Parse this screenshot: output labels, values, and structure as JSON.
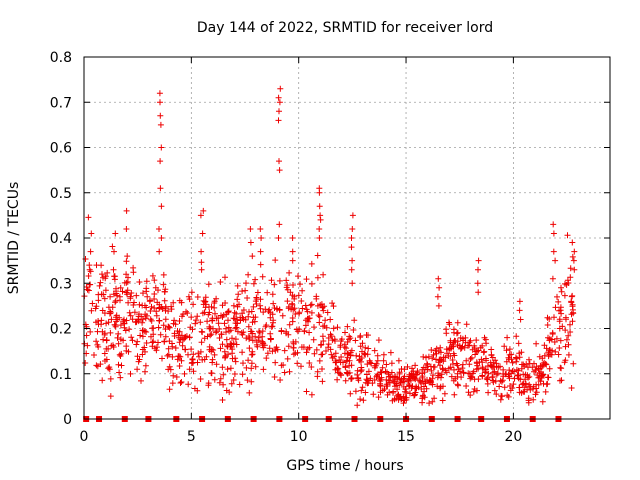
{
  "chart_data": {
    "type": "scatter",
    "title": "Day 144 of 2022, SRMTID for receiver lord",
    "xlabel": "GPS time / hours",
    "ylabel": "SRMTID / TECUs",
    "xlim": [
      0,
      24.5
    ],
    "ylim": [
      0,
      0.8
    ],
    "xticks": [
      0,
      5,
      10,
      15,
      20
    ],
    "xtick_labels": [
      "0",
      "5",
      "10",
      "15",
      "20"
    ],
    "yticks": [
      0,
      0.1,
      0.2,
      0.3,
      0.4,
      0.5,
      0.6,
      0.7,
      0.8
    ],
    "ytick_labels": [
      "0",
      "0.1",
      "0.2",
      "0.3",
      "0.4",
      "0.5",
      "0.6",
      "0.7",
      "0.8"
    ],
    "grid": true,
    "marker": "plus",
    "color": "#ee0000",
    "profile": [
      [
        0.0,
        0.16
      ],
      [
        0.2,
        0.3
      ],
      [
        0.4,
        0.25
      ],
      [
        0.7,
        0.2
      ],
      [
        1.0,
        0.24
      ],
      [
        1.3,
        0.23
      ],
      [
        1.6,
        0.25
      ],
      [
        2.0,
        0.24
      ],
      [
        2.4,
        0.22
      ],
      [
        2.8,
        0.21
      ],
      [
        3.2,
        0.2
      ],
      [
        3.6,
        0.22
      ],
      [
        4.0,
        0.16
      ],
      [
        4.4,
        0.17
      ],
      [
        4.8,
        0.19
      ],
      [
        5.2,
        0.2
      ],
      [
        5.6,
        0.21
      ],
      [
        6.0,
        0.19
      ],
      [
        6.5,
        0.17
      ],
      [
        7.0,
        0.18
      ],
      [
        7.5,
        0.2
      ],
      [
        8.0,
        0.2
      ],
      [
        8.5,
        0.2
      ],
      [
        9.0,
        0.2
      ],
      [
        9.5,
        0.21
      ],
      [
        10.0,
        0.2
      ],
      [
        10.5,
        0.21
      ],
      [
        11.0,
        0.21
      ],
      [
        11.5,
        0.17
      ],
      [
        12.0,
        0.14
      ],
      [
        12.5,
        0.13
      ],
      [
        13.0,
        0.12
      ],
      [
        13.5,
        0.11
      ],
      [
        14.0,
        0.1
      ],
      [
        14.5,
        0.08
      ],
      [
        15.0,
        0.07
      ],
      [
        15.5,
        0.08
      ],
      [
        16.0,
        0.09
      ],
      [
        16.5,
        0.11
      ],
      [
        17.0,
        0.13
      ],
      [
        17.5,
        0.14
      ],
      [
        18.0,
        0.13
      ],
      [
        18.5,
        0.12
      ],
      [
        19.0,
        0.1
      ],
      [
        19.5,
        0.1
      ],
      [
        20.0,
        0.11
      ],
      [
        20.5,
        0.09
      ],
      [
        21.0,
        0.09
      ],
      [
        21.5,
        0.13
      ],
      [
        22.0,
        0.19
      ],
      [
        22.4,
        0.22
      ],
      [
        22.8,
        0.27
      ]
    ],
    "spikes": [
      {
        "x": 3.55,
        "values": [
          0.72,
          0.7,
          0.67,
          0.65,
          0.6,
          0.57,
          0.51,
          0.47,
          0.42,
          0.4,
          0.37
        ]
      },
      {
        "x": 9.1,
        "values": [
          0.73,
          0.71,
          0.7,
          0.68,
          0.66,
          0.57,
          0.55,
          0.43,
          0.4
        ]
      },
      {
        "x": 11.0,
        "values": [
          0.51,
          0.5,
          0.47,
          0.45,
          0.44,
          0.42,
          0.4
        ]
      },
      {
        "x": 12.5,
        "values": [
          0.45,
          0.42,
          0.4,
          0.38,
          0.35,
          0.33,
          0.3
        ]
      },
      {
        "x": 5.5,
        "values": [
          0.46,
          0.45,
          0.41,
          0.37,
          0.33
        ]
      },
      {
        "x": 2.0,
        "values": [
          0.46,
          0.42,
          0.36
        ]
      },
      {
        "x": 7.8,
        "values": [
          0.42,
          0.39,
          0.36
        ]
      },
      {
        "x": 8.2,
        "values": [
          0.42,
          0.4,
          0.37
        ]
      },
      {
        "x": 9.75,
        "values": [
          0.4,
          0.37,
          0.35
        ]
      },
      {
        "x": 16.5,
        "values": [
          0.31,
          0.29,
          0.27,
          0.25
        ]
      },
      {
        "x": 18.4,
        "values": [
          0.35,
          0.33,
          0.3,
          0.28
        ]
      },
      {
        "x": 20.3,
        "values": [
          0.26,
          0.24,
          0.22
        ]
      },
      {
        "x": 21.9,
        "values": [
          0.43,
          0.41,
          0.37,
          0.35,
          0.31
        ]
      },
      {
        "x": 22.8,
        "values": [
          0.39,
          0.37,
          0.35,
          0.33
        ]
      },
      {
        "x": 0.3,
        "values": [
          0.41,
          0.37,
          0.34,
          0.33
        ]
      },
      {
        "x": 1.4,
        "values": [
          0.41,
          0.37,
          0.33
        ]
      }
    ],
    "zero_markers_x": [
      0.1,
      0.7,
      1.9,
      3.0,
      4.3,
      5.5,
      6.7,
      7.9,
      9.1,
      10.3,
      11.4,
      12.6,
      13.8,
      15.0,
      16.2,
      17.4,
      18.5,
      19.7,
      20.9,
      22.1
    ]
  }
}
